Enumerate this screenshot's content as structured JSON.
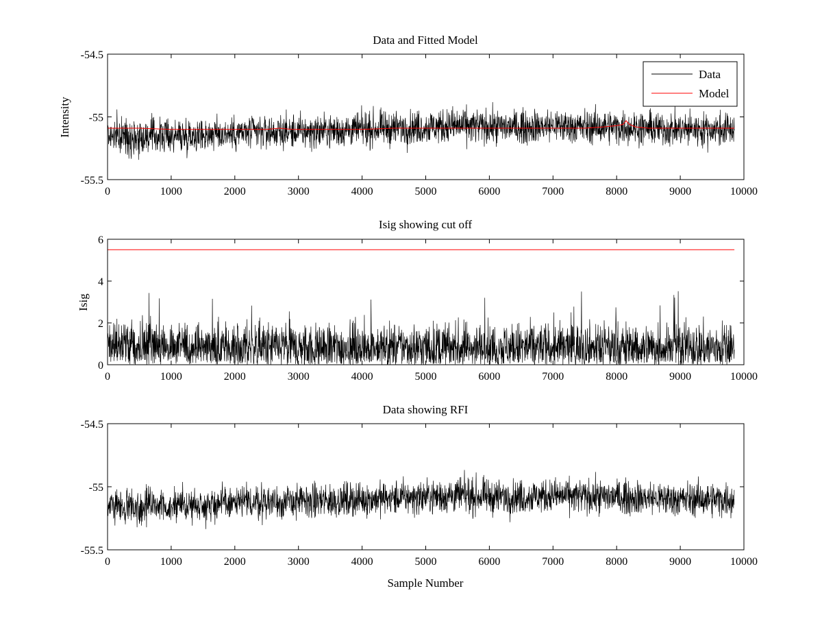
{
  "chart_data": [
    {
      "type": "line",
      "title": "Data and Fitted Model",
      "xlabel": "",
      "ylabel": "Intensity",
      "xlim": [
        0,
        10000
      ],
      "ylim": [
        -55.5,
        -54.5
      ],
      "xticks": [
        0,
        1000,
        2000,
        3000,
        4000,
        5000,
        6000,
        7000,
        8000,
        9000,
        10000
      ],
      "xtick_labels": [
        "0",
        "1000",
        "2000",
        "3000",
        "4000",
        "5000",
        "6000",
        "7000",
        "8000",
        "9000",
        "10000"
      ],
      "yticks": [
        -55.5,
        -55,
        -54.5
      ],
      "ytick_labels": [
        "-55.5",
        "-55",
        "-54.5"
      ],
      "grid": false,
      "legend_position": "top-right",
      "series": [
        {
          "name": "Data",
          "color": "#000000",
          "noise": true,
          "x": [
            0,
            500,
            1000,
            1500,
            2000,
            2500,
            3000,
            3500,
            4000,
            4500,
            5000,
            5500,
            6000,
            6500,
            7000,
            7500,
            8000,
            8500,
            9000,
            9500,
            9850
          ],
          "center": [
            -55.15,
            -55.16,
            -55.15,
            -55.14,
            -55.13,
            -55.12,
            -55.12,
            -55.11,
            -55.1,
            -55.09,
            -55.08,
            -55.07,
            -55.08,
            -55.08,
            -55.07,
            -55.08,
            -55.08,
            -55.09,
            -55.1,
            -55.1,
            -55.1
          ],
          "amplitude": [
            0.12,
            0.13,
            0.12,
            0.12,
            0.12,
            0.12,
            0.12,
            0.12,
            0.12,
            0.12,
            0.12,
            0.13,
            0.12,
            0.12,
            0.12,
            0.12,
            0.12,
            0.12,
            0.12,
            0.12,
            0.12
          ],
          "min_value": -55.45,
          "max_value": -54.78
        },
        {
          "name": "Model",
          "color": "#ff0000",
          "x": [
            0,
            500,
            1000,
            1500,
            2000,
            2500,
            2700,
            2900,
            3500,
            4000,
            4500,
            5000,
            5500,
            6000,
            6500,
            7000,
            7500,
            7800,
            8000,
            8100,
            8150,
            8200,
            8300,
            8500,
            9000,
            9500,
            9850
          ],
          "y": [
            -55.09,
            -55.09,
            -55.1,
            -55.1,
            -55.1,
            -55.1,
            -55.09,
            -55.1,
            -55.1,
            -55.1,
            -55.09,
            -55.09,
            -55.09,
            -55.09,
            -55.09,
            -55.09,
            -55.09,
            -55.08,
            -55.07,
            -55.06,
            -55.03,
            -55.06,
            -55.08,
            -55.09,
            -55.09,
            -55.09,
            -55.09
          ]
        }
      ]
    },
    {
      "type": "line",
      "title": "Isig showing cut off",
      "xlabel": "",
      "ylabel": "Isig",
      "xlim": [
        0,
        10000
      ],
      "ylim": [
        0,
        6
      ],
      "xticks": [
        0,
        1000,
        2000,
        3000,
        4000,
        5000,
        6000,
        7000,
        8000,
        9000,
        10000
      ],
      "xtick_labels": [
        "0",
        "1000",
        "2000",
        "3000",
        "4000",
        "5000",
        "6000",
        "7000",
        "8000",
        "9000",
        "10000"
      ],
      "yticks": [
        0,
        2,
        4,
        6
      ],
      "ytick_labels": [
        "0",
        "2",
        "4",
        "6"
      ],
      "grid": false,
      "series": [
        {
          "color": "#000000",
          "noise": true,
          "x": [
            0,
            1000,
            2000,
            3000,
            4000,
            5000,
            6000,
            7000,
            8000,
            9000,
            9850
          ],
          "center": [
            0.9,
            0.85,
            0.8,
            0.8,
            0.8,
            0.8,
            0.8,
            0.8,
            0.8,
            0.8,
            0.8
          ],
          "amplitude": [
            0.9,
            0.8,
            0.8,
            0.8,
            0.8,
            0.8,
            0.8,
            0.8,
            0.8,
            0.8,
            0.8
          ],
          "min_value": 0,
          "max_value": 4.1
        },
        {
          "color": "#ff0000",
          "x": [
            0,
            9850
          ],
          "y": [
            5.5,
            5.5
          ]
        }
      ]
    },
    {
      "type": "line",
      "title": "Data showing RFI",
      "xlabel": "Sample Number",
      "ylabel": "",
      "xlim": [
        0,
        10000
      ],
      "ylim": [
        -55.5,
        -54.5
      ],
      "xticks": [
        0,
        1000,
        2000,
        3000,
        4000,
        5000,
        6000,
        7000,
        8000,
        9000,
        10000
      ],
      "xtick_labels": [
        "0",
        "1000",
        "2000",
        "3000",
        "4000",
        "5000",
        "6000",
        "7000",
        "8000",
        "9000",
        "10000"
      ],
      "yticks": [
        -55.5,
        -55,
        -54.5
      ],
      "ytick_labels": [
        "-55.5",
        "-55",
        "-54.5"
      ],
      "grid": false,
      "series": [
        {
          "color": "#000000",
          "noise": true,
          "x": [
            0,
            500,
            1000,
            1500,
            2000,
            2500,
            3000,
            3500,
            4000,
            4500,
            5000,
            5500,
            6000,
            6500,
            7000,
            7500,
            8000,
            8500,
            9000,
            9500,
            9850
          ],
          "center": [
            -55.15,
            -55.16,
            -55.15,
            -55.14,
            -55.13,
            -55.12,
            -55.12,
            -55.11,
            -55.1,
            -55.09,
            -55.08,
            -55.07,
            -55.08,
            -55.08,
            -55.07,
            -55.08,
            -55.08,
            -55.09,
            -55.1,
            -55.1,
            -55.1
          ],
          "amplitude": [
            0.12,
            0.13,
            0.12,
            0.12,
            0.12,
            0.12,
            0.12,
            0.12,
            0.12,
            0.12,
            0.12,
            0.13,
            0.12,
            0.12,
            0.12,
            0.12,
            0.12,
            0.12,
            0.12,
            0.12,
            0.12
          ],
          "min_value": -55.45,
          "max_value": -54.78
        }
      ]
    }
  ]
}
